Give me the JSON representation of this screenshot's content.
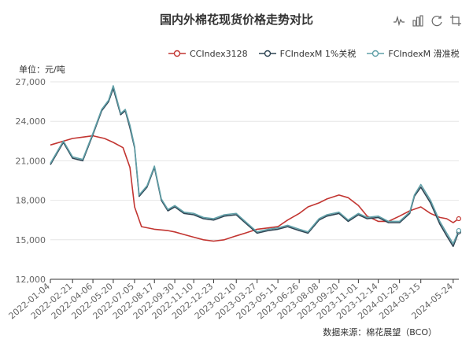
{
  "title": "国内外棉花现货价格走势对比",
  "unit_label": "单位：元/吨",
  "source": "数据来源：棉花展望（BCO）",
  "toolbox": [
    "line-chart-icon",
    "bar-chart-icon",
    "restore-icon",
    "crop-icon"
  ],
  "colors": {
    "cc": "#c23531",
    "fc1": "#2f4554",
    "fc2": "#61a0a8",
    "grid": "#e6e6e6",
    "axis": "#666666"
  },
  "chart_data": {
    "type": "line",
    "ylim": [
      12000,
      27000
    ],
    "yticks": [
      "12,000",
      "15,000",
      "18,000",
      "21,000",
      "24,000",
      "27,000"
    ],
    "yvalues": [
      12000,
      15000,
      18000,
      21000,
      24000,
      27000
    ],
    "xticks": [
      "2022-01-04",
      "2022-02-21",
      "2022-04-06",
      "2022-05-20",
      "2022-07-05",
      "2022-08-17",
      "2022-09-30",
      "2022-11-10",
      "2022-12-23",
      "2023-02-10",
      "2023-03-27",
      "2023-05-11",
      "2023-06-26",
      "2023-08-08",
      "2023-09-20",
      "2023-11-01",
      "2023-12-14",
      "2024-01-29",
      "2024-03-15",
      "2024-05-24"
    ],
    "series": [
      {
        "name": "CCIndex3128",
        "color": "#c23531",
        "x": [
          "2022-01-04",
          "2022-02-21",
          "2022-03-15",
          "2022-04-06",
          "2022-05-01",
          "2022-05-20",
          "2022-06-10",
          "2022-06-25",
          "2022-07-05",
          "2022-07-20",
          "2022-08-17",
          "2022-09-15",
          "2022-09-30",
          "2022-10-20",
          "2022-11-10",
          "2022-12-01",
          "2022-12-23",
          "2023-01-15",
          "2023-02-10",
          "2023-03-01",
          "2023-03-27",
          "2023-04-20",
          "2023-05-11",
          "2023-06-01",
          "2023-06-26",
          "2023-07-15",
          "2023-08-08",
          "2023-08-25",
          "2023-09-20",
          "2023-10-10",
          "2023-11-01",
          "2023-11-20",
          "2023-12-14",
          "2024-01-05",
          "2024-01-29",
          "2024-02-20",
          "2024-03-15",
          "2024-04-05",
          "2024-04-25",
          "2024-05-10",
          "2024-05-24",
          "2024-06-05"
        ],
        "values": [
          22200,
          22700,
          22800,
          22900,
          22700,
          22400,
          22000,
          20500,
          17500,
          16000,
          15800,
          15700,
          15600,
          15400,
          15200,
          15000,
          14900,
          15000,
          15300,
          15500,
          15800,
          15900,
          16000,
          16500,
          17000,
          17500,
          17800,
          18100,
          18400,
          18200,
          17600,
          16800,
          16400,
          16400,
          16800,
          17200,
          17500,
          17000,
          16700,
          16600,
          16300,
          16600
        ]
      },
      {
        "name": "FCIndexM 1%关税",
        "color": "#2f4554",
        "x": [
          "2022-01-04",
          "2022-02-01",
          "2022-02-21",
          "2022-03-15",
          "2022-04-06",
          "2022-04-25",
          "2022-05-10",
          "2022-05-20",
          "2022-06-05",
          "2022-06-15",
          "2022-06-25",
          "2022-07-05",
          "2022-07-15",
          "2022-08-01",
          "2022-08-17",
          "2022-09-01",
          "2022-09-15",
          "2022-09-30",
          "2022-10-20",
          "2022-11-10",
          "2022-12-01",
          "2022-12-23",
          "2023-01-15",
          "2023-02-10",
          "2023-03-01",
          "2023-03-27",
          "2023-04-20",
          "2023-05-11",
          "2023-06-01",
          "2023-06-26",
          "2023-07-15",
          "2023-08-08",
          "2023-08-25",
          "2023-09-20",
          "2023-10-10",
          "2023-11-01",
          "2023-11-20",
          "2023-12-14",
          "2024-01-05",
          "2024-01-29",
          "2024-02-20",
          "2024-03-01",
          "2024-03-15",
          "2024-04-05",
          "2024-04-25",
          "2024-05-10",
          "2024-05-24",
          "2024-06-05"
        ],
        "values": [
          20700,
          22400,
          21200,
          21000,
          23000,
          24800,
          25500,
          26500,
          24500,
          24800,
          23500,
          22000,
          18300,
          19000,
          20500,
          18000,
          17200,
          17500,
          17000,
          16900,
          16600,
          16500,
          16800,
          16900,
          16300,
          15500,
          15700,
          15800,
          16000,
          15700,
          15500,
          16500,
          16800,
          17000,
          16400,
          16900,
          16600,
          16700,
          16300,
          16300,
          17000,
          18300,
          19000,
          17800,
          16200,
          15300,
          14500,
          15600
        ]
      },
      {
        "name": "FCIndexM 滑准税",
        "color": "#61a0a8",
        "x": [
          "2022-01-04",
          "2022-02-01",
          "2022-02-21",
          "2022-03-15",
          "2022-04-06",
          "2022-04-25",
          "2022-05-10",
          "2022-05-20",
          "2022-06-05",
          "2022-06-15",
          "2022-06-25",
          "2022-07-05",
          "2022-07-15",
          "2022-08-01",
          "2022-08-17",
          "2022-09-01",
          "2022-09-15",
          "2022-09-30",
          "2022-10-20",
          "2022-11-10",
          "2022-12-01",
          "2022-12-23",
          "2023-01-15",
          "2023-02-10",
          "2023-03-01",
          "2023-03-27",
          "2023-04-20",
          "2023-05-11",
          "2023-06-01",
          "2023-06-26",
          "2023-07-15",
          "2023-08-08",
          "2023-08-25",
          "2023-09-20",
          "2023-10-10",
          "2023-11-01",
          "2023-11-20",
          "2023-12-14",
          "2024-01-05",
          "2024-01-29",
          "2024-02-20",
          "2024-03-01",
          "2024-03-15",
          "2024-04-05",
          "2024-04-25",
          "2024-05-10",
          "2024-05-24",
          "2024-06-05"
        ],
        "values": [
          20800,
          22500,
          21300,
          21100,
          23100,
          24900,
          25600,
          26700,
          24600,
          24900,
          23700,
          22100,
          18400,
          19100,
          20600,
          18100,
          17300,
          17600,
          17100,
          17000,
          16700,
          16600,
          16900,
          17000,
          16400,
          15600,
          15800,
          15900,
          16100,
          15800,
          15600,
          16600,
          16900,
          17100,
          16500,
          17000,
          16700,
          16800,
          16400,
          16400,
          17100,
          18400,
          19200,
          18000,
          16400,
          15500,
          14700,
          15700
        ]
      }
    ]
  }
}
